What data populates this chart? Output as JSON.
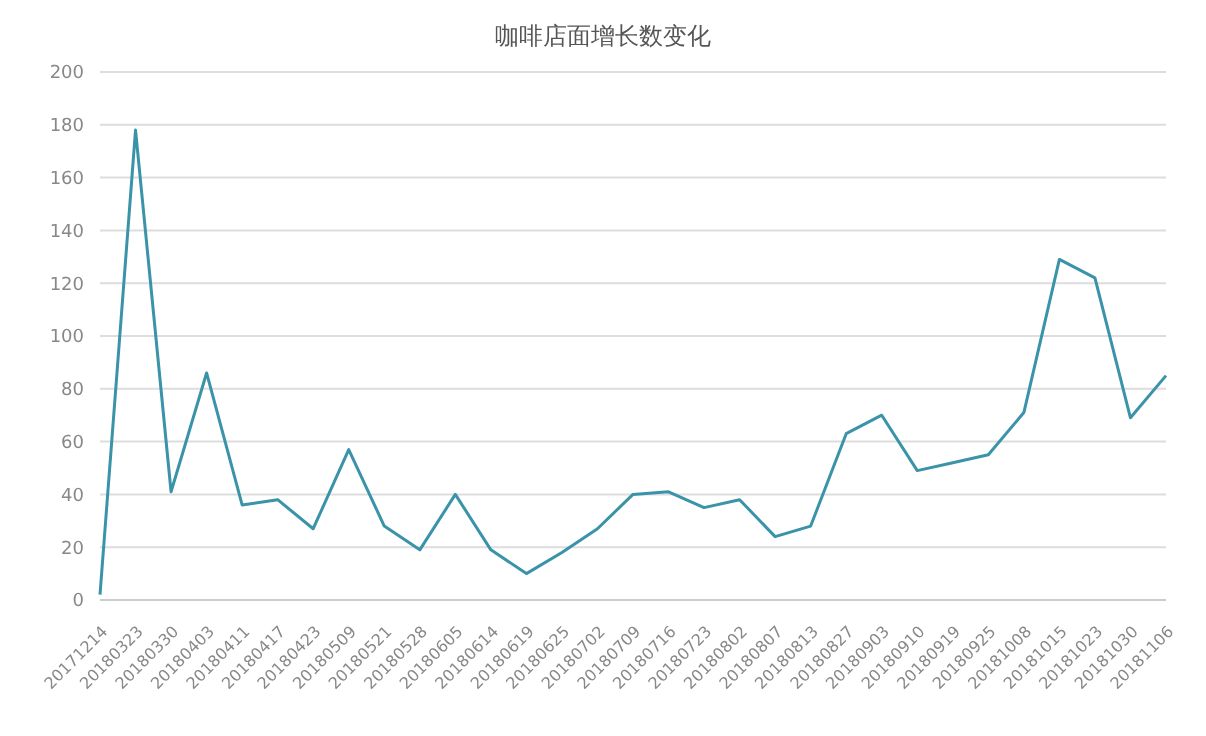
{
  "chart_data": {
    "type": "line",
    "title": "咖啡店面增长数变化",
    "categories": [
      "20171214",
      "20180323",
      "20180330",
      "20180403",
      "20180411",
      "20180417",
      "20180423",
      "20180509",
      "20180521",
      "20180528",
      "20180605",
      "20180614",
      "20180619",
      "20180625",
      "20180702",
      "20180709",
      "20180716",
      "20180723",
      "20180802",
      "20180807",
      "20180813",
      "20180827",
      "20180903",
      "20180910",
      "20180919",
      "20180925",
      "20181008",
      "20181015",
      "20181023",
      "20181030",
      "20181106"
    ],
    "series": [
      {
        "color": "#3a93a8",
        "values": [
          2,
          178,
          41,
          86,
          36,
          38,
          27,
          57,
          28,
          19,
          40,
          19,
          10,
          18,
          27,
          40,
          41,
          35,
          38,
          24,
          28,
          63,
          70,
          49,
          52,
          55,
          71,
          129,
          122,
          69,
          85
        ]
      }
    ],
    "ylim": [
      0,
      200
    ],
    "yticks": [
      0,
      20,
      40,
      60,
      80,
      100,
      120,
      140,
      160,
      180,
      200
    ],
    "grid": "y",
    "marker": "none",
    "line_style": "solid",
    "legend": false
  }
}
